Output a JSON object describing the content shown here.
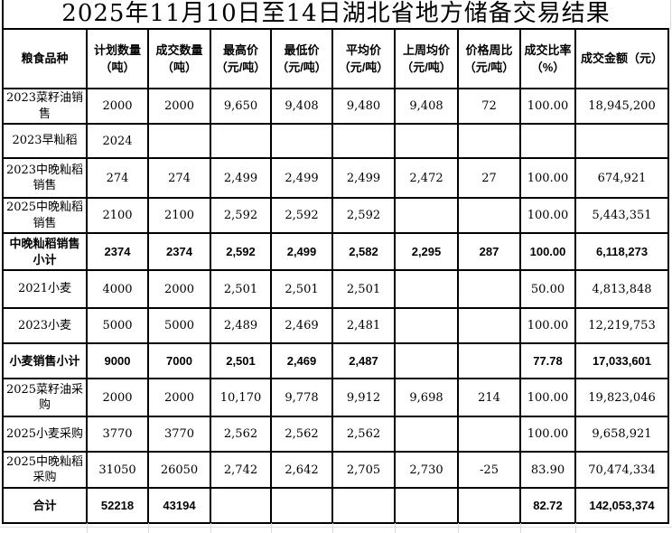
{
  "title": "2025年11月10日至14日湖北省地方储备交易结果",
  "table": {
    "columns": [
      "粮食品种",
      "计划数量\n（吨）",
      "成交数量\n（吨）",
      "最高价\n（元/吨）",
      "最低价\n（元/吨）",
      "平均价\n（元/吨）",
      "上周均价\n（元/吨）",
      "价格周比\n（元/吨）",
      "成交比率\n（%）",
      "成交金额（元）"
    ],
    "rows": [
      {
        "name": "2023菜籽油销售",
        "bold": false,
        "cells": [
          "2000",
          "2000",
          "9,650",
          "9,408",
          "9,480",
          "9,408",
          "72",
          "100.00",
          "18,945,200"
        ]
      },
      {
        "name": "2023早籼稻",
        "bold": false,
        "cells": [
          "2024",
          "",
          "",
          "",
          "",
          "",
          "",
          "",
          ""
        ]
      },
      {
        "name": "2023中晚籼稻销售",
        "bold": false,
        "cells": [
          "274",
          "274",
          "2,499",
          "2,499",
          "2,499",
          "2,472",
          "27",
          "100.00",
          "674,921"
        ]
      },
      {
        "name": "2025中晚籼稻销售",
        "bold": false,
        "cells": [
          "2100",
          "2100",
          "2,592",
          "2,592",
          "2,592",
          "",
          "",
          "100.00",
          "5,443,351"
        ]
      },
      {
        "name": "中晚籼稻销售小计",
        "bold": true,
        "cells": [
          "2374",
          "2374",
          "2,592",
          "2,499",
          "2,582",
          "2,295",
          "287",
          "100.00",
          "6,118,273"
        ]
      },
      {
        "name": "2021小麦",
        "bold": false,
        "cells": [
          "4000",
          "2000",
          "2,501",
          "2,501",
          "2,501",
          "",
          "",
          "50.00",
          "4,813,848"
        ]
      },
      {
        "name": "2023小麦",
        "bold": false,
        "cells": [
          "5000",
          "5000",
          "2,489",
          "2,469",
          "2,481",
          "",
          "",
          "100.00",
          "12,219,753"
        ]
      },
      {
        "name": "小麦销售小计",
        "bold": true,
        "cells": [
          "9000",
          "7000",
          "2,501",
          "2,469",
          "2,487",
          "",
          "",
          "77.78",
          "17,033,601"
        ]
      },
      {
        "name": "2025菜籽油采购",
        "bold": false,
        "cells": [
          "2000",
          "2000",
          "10,170",
          "9,778",
          "9,912",
          "9,698",
          "214",
          "100.00",
          "19,823,046"
        ]
      },
      {
        "name": "2025小麦采购",
        "bold": false,
        "cells": [
          "3770",
          "3770",
          "2,562",
          "2,562",
          "2,562",
          "",
          "",
          "100.00",
          "9,658,921"
        ]
      },
      {
        "name": "2025中晚籼稻采购",
        "bold": false,
        "cells": [
          "31050",
          "26050",
          "2,742",
          "2,642",
          "2,705",
          "2,730",
          "-25",
          "83.90",
          "70,474,334"
        ]
      },
      {
        "name": "合计",
        "bold": true,
        "cells": [
          "52218",
          "43194",
          "",
          "",
          "",
          "",
          "",
          "82.72",
          "142,053,374"
        ]
      }
    ]
  },
  "colors": {
    "border": "#000000",
    "text": "#000000",
    "background": "#ffffff",
    "faint_grid": "#d9d9d9"
  }
}
